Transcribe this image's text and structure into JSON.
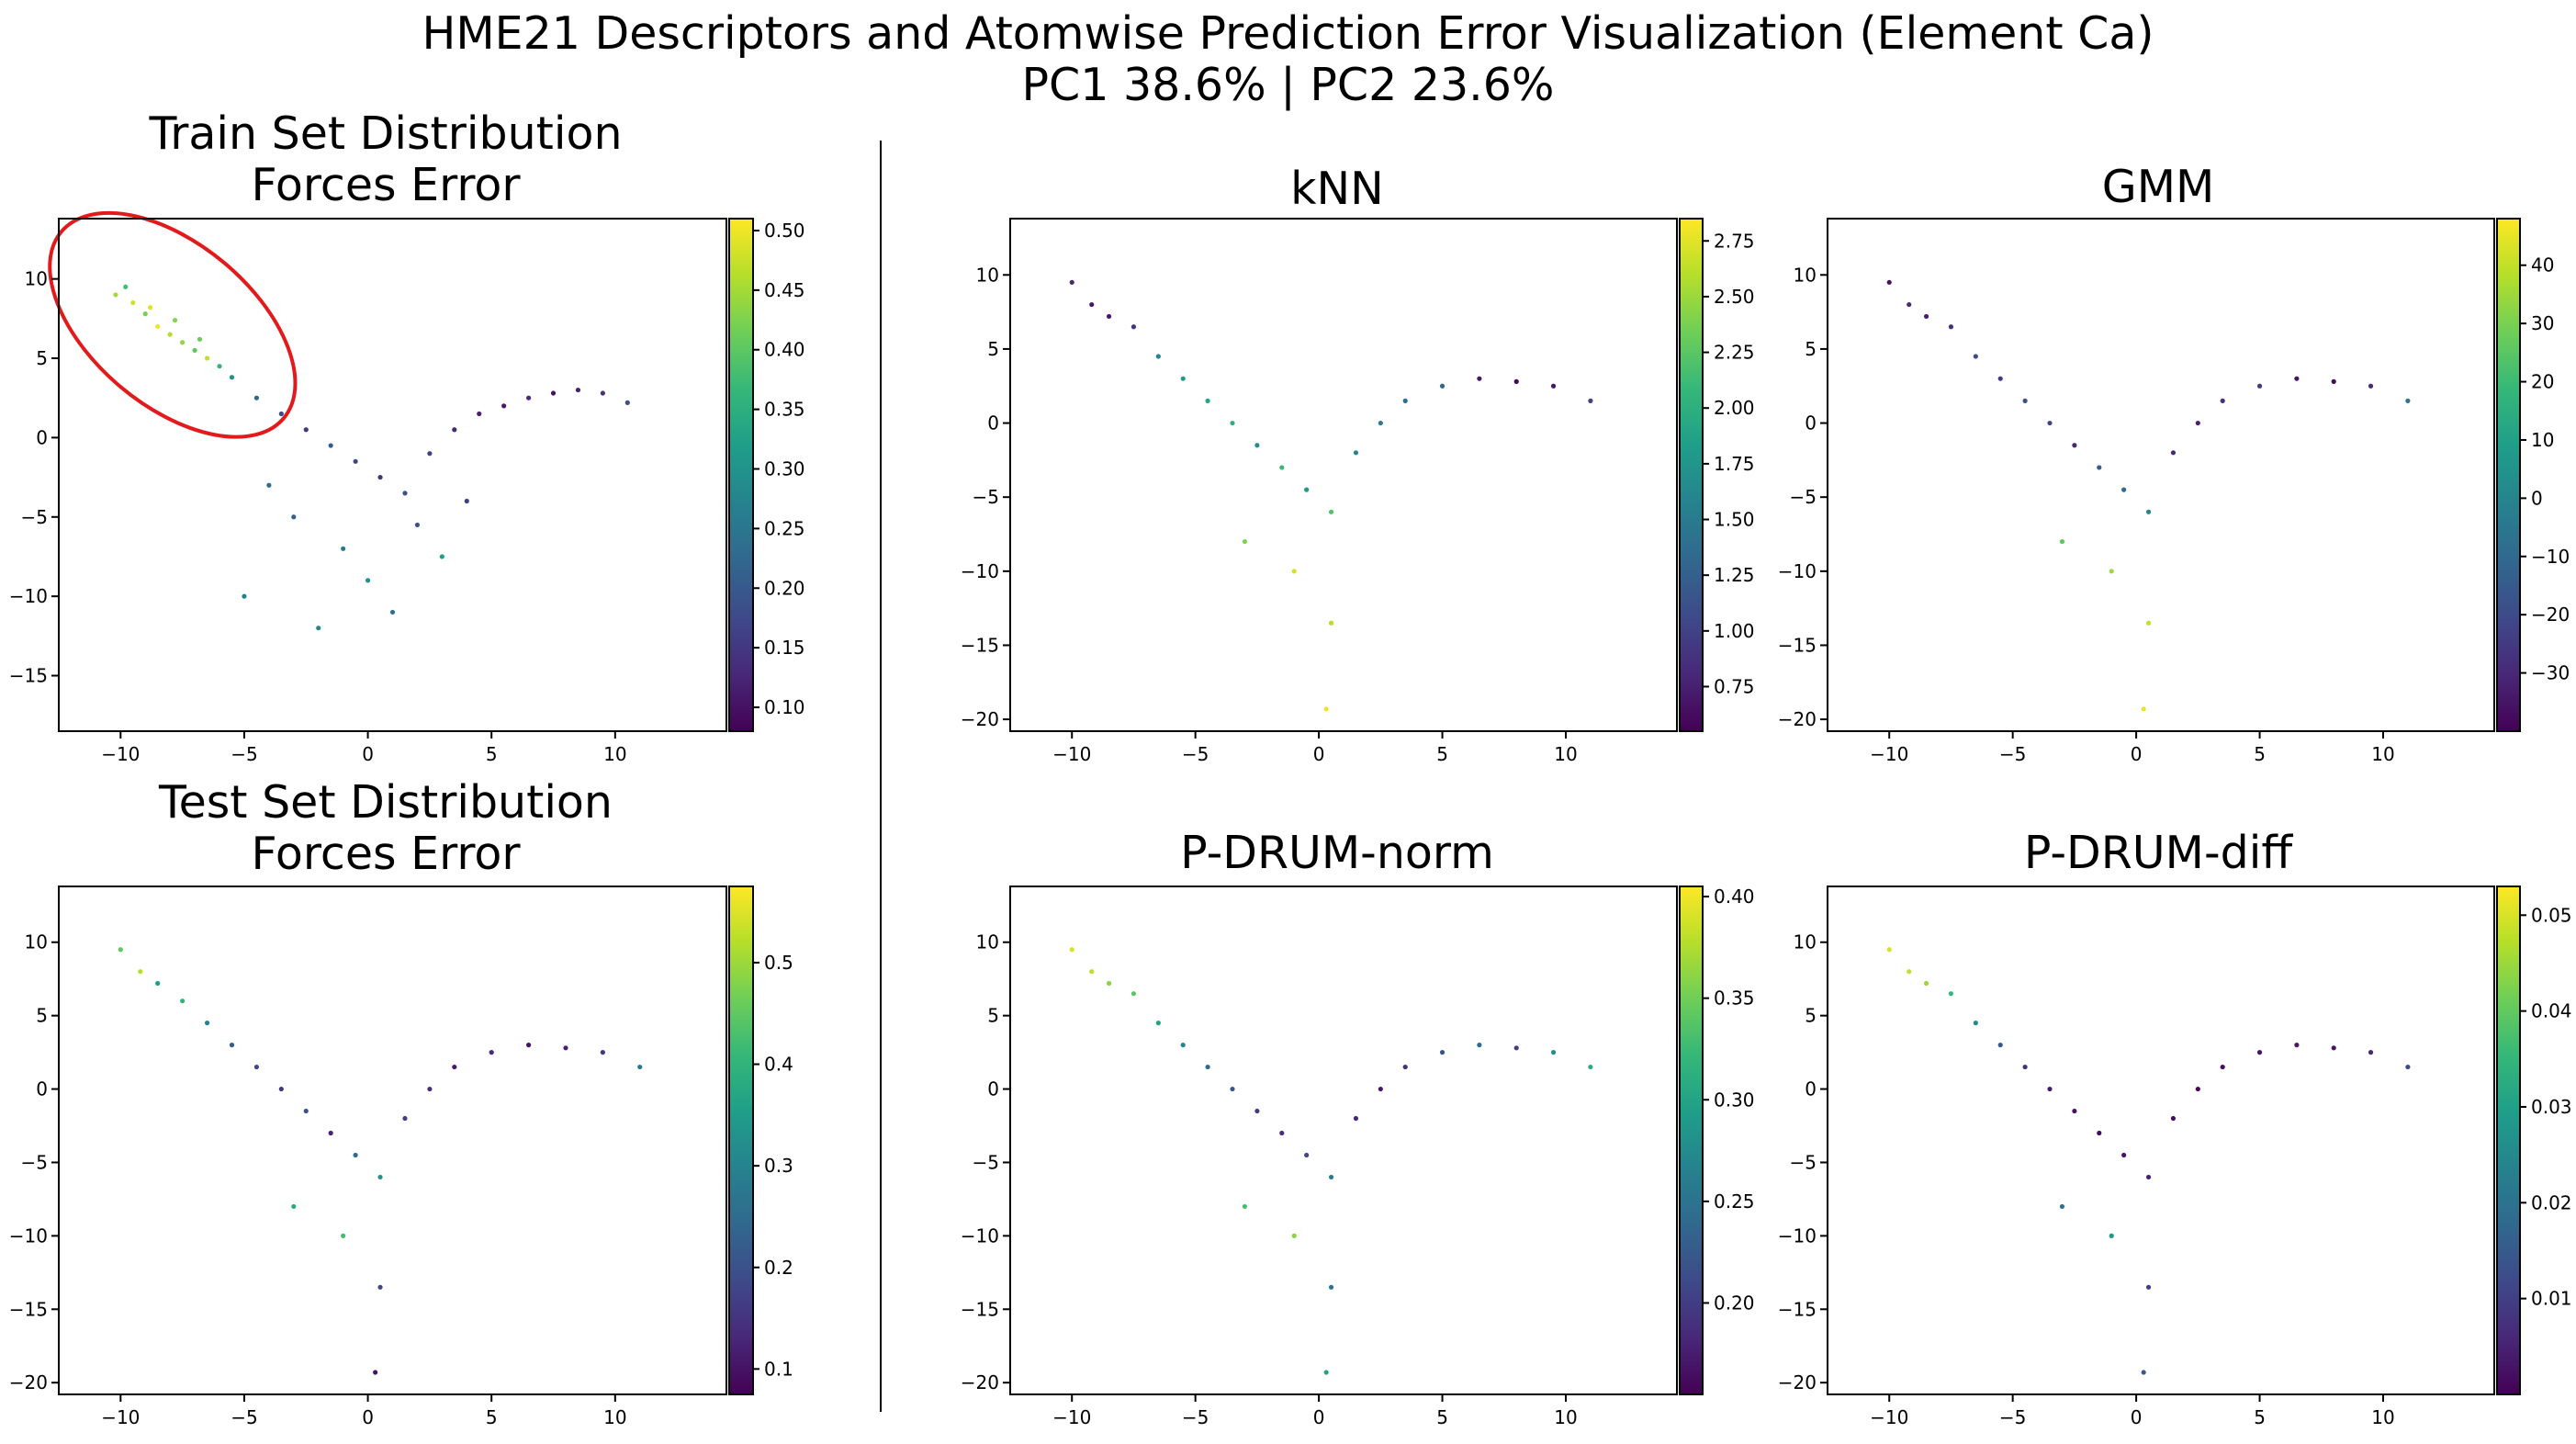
{
  "figure": {
    "title_line1": "HME21 Descriptors and Atomwise Prediction Error Visualization (Element Ca)",
    "title_line2": "PC1 38.6% | PC2 23.6%"
  },
  "chart_data": [
    {
      "type": "scatter",
      "title": "Train Set Distribution\nForces Error",
      "xlim": [
        -12.5,
        14.5
      ],
      "ylim": [
        -18.5,
        13.8
      ],
      "xticks": [
        -10,
        -5,
        0,
        5,
        10
      ],
      "yticks": [
        -15,
        -10,
        -5,
        0,
        5,
        10
      ],
      "colorbar": {
        "colormap": "viridis",
        "min": 0.08,
        "max": 0.51,
        "ticks": [
          0.1,
          0.15,
          0.2,
          0.25,
          0.3,
          0.35,
          0.4,
          0.45,
          0.5
        ],
        "tick_labels": [
          "0.10",
          "0.15",
          "0.20",
          "0.25",
          "0.30",
          "0.35",
          "0.40",
          "0.45",
          "0.50"
        ]
      },
      "annotation": {
        "shape": "ellipse",
        "color": "#e31a1c",
        "center": [
          -7.9,
          7.1
        ],
        "description": "high-error region circled"
      },
      "points": [
        [
          -10.2,
          9.0,
          0.45
        ],
        [
          -9.5,
          8.5,
          0.48
        ],
        [
          -9.0,
          7.8,
          0.42
        ],
        [
          -8.5,
          7.0,
          0.5
        ],
        [
          -8.0,
          6.5,
          0.46
        ],
        [
          -7.5,
          6.0,
          0.44
        ],
        [
          -7.0,
          5.5,
          0.4
        ],
        [
          -6.5,
          5.0,
          0.47
        ],
        [
          -9.8,
          9.5,
          0.38
        ],
        [
          -8.8,
          8.2,
          0.49
        ],
        [
          -7.8,
          7.4,
          0.43
        ],
        [
          -6.8,
          6.2,
          0.41
        ],
        [
          -6.0,
          4.5,
          0.36
        ],
        [
          -5.5,
          3.8,
          0.3
        ],
        [
          -4.5,
          2.5,
          0.22
        ],
        [
          -3.5,
          1.5,
          0.18
        ],
        [
          -2.5,
          0.5,
          0.15
        ],
        [
          -1.5,
          -0.5,
          0.2
        ],
        [
          -0.5,
          -1.5,
          0.17
        ],
        [
          0.5,
          -2.5,
          0.14
        ],
        [
          1.5,
          -3.5,
          0.19
        ],
        [
          2.5,
          -1.0,
          0.16
        ],
        [
          3.5,
          0.5,
          0.13
        ],
        [
          4.5,
          1.5,
          0.12
        ],
        [
          5.5,
          2.0,
          0.11
        ],
        [
          6.5,
          2.5,
          0.13
        ],
        [
          7.5,
          2.8,
          0.1
        ],
        [
          8.5,
          3.0,
          0.12
        ],
        [
          9.5,
          2.8,
          0.14
        ],
        [
          10.5,
          2.2,
          0.18
        ],
        [
          -3.0,
          -5.0,
          0.21
        ],
        [
          -1.0,
          -7.0,
          0.26
        ],
        [
          0.0,
          -9.0,
          0.3
        ],
        [
          1.0,
          -11.0,
          0.24
        ],
        [
          -2.0,
          -12.0,
          0.28
        ],
        [
          2.0,
          -5.5,
          0.19
        ],
        [
          -4.0,
          -3.0,
          0.23
        ],
        [
          3.0,
          -7.5,
          0.32
        ],
        [
          -5.0,
          -10.0,
          0.27
        ],
        [
          4.0,
          -4.0,
          0.16
        ]
      ]
    },
    {
      "type": "scatter",
      "title": "Test Set Distribution\nForces Error",
      "xlim": [
        -12.5,
        14.5
      ],
      "ylim": [
        -20.8,
        13.8
      ],
      "xticks": [
        -10,
        -5,
        0,
        5,
        10
      ],
      "yticks": [
        -20,
        -15,
        -10,
        -5,
        0,
        5,
        10
      ],
      "colorbar": {
        "colormap": "viridis",
        "min": 0.075,
        "max": 0.575,
        "ticks": [
          0.1,
          0.2,
          0.3,
          0.4,
          0.5
        ],
        "tick_labels": [
          "0.1",
          "0.2",
          "0.3",
          "0.4",
          "0.5"
        ]
      },
      "points": [
        [
          -10.0,
          9.5,
          0.45
        ],
        [
          -9.2,
          8.0,
          0.52
        ],
        [
          -8.5,
          7.2,
          0.35
        ],
        [
          -7.5,
          6.0,
          0.4
        ],
        [
          -6.5,
          4.5,
          0.3
        ],
        [
          -5.5,
          3.0,
          0.22
        ],
        [
          -4.5,
          1.5,
          0.18
        ],
        [
          -3.5,
          0.0,
          0.15
        ],
        [
          -2.5,
          -1.5,
          0.2
        ],
        [
          -1.5,
          -3.0,
          0.12
        ],
        [
          -0.5,
          -4.5,
          0.25
        ],
        [
          0.5,
          -6.0,
          0.33
        ],
        [
          1.5,
          -2.0,
          0.16
        ],
        [
          2.5,
          0.0,
          0.14
        ],
        [
          3.5,
          1.5,
          0.11
        ],
        [
          5.0,
          2.5,
          0.13
        ],
        [
          6.5,
          3.0,
          0.1
        ],
        [
          8.0,
          2.8,
          0.12
        ],
        [
          9.5,
          2.5,
          0.15
        ],
        [
          11.0,
          1.5,
          0.28
        ],
        [
          -3.0,
          -8.0,
          0.38
        ],
        [
          -1.0,
          -10.0,
          0.42
        ],
        [
          0.3,
          -19.3,
          0.1
        ],
        [
          0.5,
          -13.5,
          0.18
        ]
      ]
    },
    {
      "type": "scatter",
      "title": "kNN",
      "xlim": [
        -12.5,
        14.5
      ],
      "ylim": [
        -20.8,
        13.8
      ],
      "xticks": [
        -10,
        -5,
        0,
        5,
        10
      ],
      "yticks": [
        -20,
        -15,
        -10,
        -5,
        0,
        5,
        10
      ],
      "colorbar": {
        "colormap": "viridis",
        "min": 0.55,
        "max": 2.85,
        "ticks": [
          0.75,
          1.0,
          1.25,
          1.5,
          1.75,
          2.0,
          2.25,
          2.5,
          2.75
        ],
        "tick_labels": [
          "0.75",
          "1.00",
          "1.25",
          "1.50",
          "1.75",
          "2.00",
          "2.25",
          "2.50",
          "2.75"
        ]
      },
      "points": [
        [
          -10.0,
          9.5,
          0.8
        ],
        [
          -9.2,
          8.0,
          0.7
        ],
        [
          -8.5,
          7.2,
          0.7
        ],
        [
          -7.5,
          6.5,
          0.9
        ],
        [
          -6.5,
          4.5,
          1.6
        ],
        [
          -5.5,
          3.0,
          1.8
        ],
        [
          -4.5,
          1.5,
          1.9
        ],
        [
          -3.5,
          0.0,
          2.0
        ],
        [
          -2.5,
          -1.5,
          1.7
        ],
        [
          -1.5,
          -3.0,
          2.1
        ],
        [
          -0.5,
          -4.5,
          1.8
        ],
        [
          0.5,
          -6.0,
          2.2
        ],
        [
          1.5,
          -2.0,
          1.6
        ],
        [
          2.5,
          0.0,
          1.5
        ],
        [
          3.5,
          1.5,
          1.4
        ],
        [
          5.0,
          2.5,
          1.3
        ],
        [
          6.5,
          3.0,
          0.7
        ],
        [
          8.0,
          2.8,
          0.6
        ],
        [
          9.5,
          2.5,
          0.7
        ],
        [
          11.0,
          1.5,
          1.0
        ],
        [
          -3.0,
          -8.0,
          2.4
        ],
        [
          -1.0,
          -10.0,
          2.7
        ],
        [
          0.3,
          -19.3,
          2.8
        ],
        [
          0.5,
          -13.5,
          2.6
        ]
      ]
    },
    {
      "type": "scatter",
      "title": "GMM",
      "xlim": [
        -12.5,
        14.5
      ],
      "ylim": [
        -20.8,
        13.8
      ],
      "xticks": [
        -10,
        -5,
        0,
        5,
        10
      ],
      "yticks": [
        -20,
        -15,
        -10,
        -5,
        0,
        5,
        10
      ],
      "colorbar": {
        "colormap": "viridis",
        "min": -40,
        "max": 48,
        "ticks": [
          -30,
          -20,
          -10,
          0,
          10,
          20,
          30,
          40
        ],
        "tick_labels": [
          "−30",
          "−20",
          "−10",
          "0",
          "10",
          "20",
          "30",
          "40"
        ]
      },
      "points": [
        [
          -10.0,
          9.5,
          -35
        ],
        [
          -9.2,
          8.0,
          -30
        ],
        [
          -8.5,
          7.2,
          -33
        ],
        [
          -7.5,
          6.5,
          -28
        ],
        [
          -6.5,
          4.5,
          -20
        ],
        [
          -5.5,
          3.0,
          -25
        ],
        [
          -4.5,
          1.5,
          -18
        ],
        [
          -3.5,
          0.0,
          -22
        ],
        [
          -2.5,
          -1.5,
          -30
        ],
        [
          -1.5,
          -3.0,
          -15
        ],
        [
          -0.5,
          -4.5,
          -10
        ],
        [
          0.5,
          -6.0,
          0
        ],
        [
          1.5,
          -2.0,
          -30
        ],
        [
          2.5,
          0.0,
          -32
        ],
        [
          3.5,
          1.5,
          -28
        ],
        [
          5.0,
          2.5,
          -25
        ],
        [
          6.5,
          3.0,
          -35
        ],
        [
          8.0,
          2.8,
          -38
        ],
        [
          9.5,
          2.5,
          -30
        ],
        [
          11.0,
          1.5,
          -5
        ],
        [
          -3.0,
          -8.0,
          25
        ],
        [
          -1.0,
          -10.0,
          35
        ],
        [
          0.3,
          -19.3,
          45
        ],
        [
          0.5,
          -13.5,
          40
        ]
      ]
    },
    {
      "type": "scatter",
      "title": "P-DRUM-norm",
      "xlim": [
        -12.5,
        14.5
      ],
      "ylim": [
        -20.8,
        13.8
      ],
      "xticks": [
        -10,
        -5,
        0,
        5,
        10
      ],
      "yticks": [
        -20,
        -15,
        -10,
        -5,
        0,
        5,
        10
      ],
      "colorbar": {
        "colormap": "viridis",
        "min": 0.155,
        "max": 0.405,
        "ticks": [
          0.2,
          0.25,
          0.3,
          0.35,
          0.4
        ],
        "tick_labels": [
          "0.20",
          "0.25",
          "0.30",
          "0.35",
          "0.40"
        ]
      },
      "points": [
        [
          -10.0,
          9.5,
          0.39
        ],
        [
          -9.2,
          8.0,
          0.38
        ],
        [
          -8.5,
          7.2,
          0.36
        ],
        [
          -7.5,
          6.5,
          0.34
        ],
        [
          -6.5,
          4.5,
          0.3
        ],
        [
          -5.5,
          3.0,
          0.27
        ],
        [
          -4.5,
          1.5,
          0.24
        ],
        [
          -3.5,
          0.0,
          0.22
        ],
        [
          -2.5,
          -1.5,
          0.2
        ],
        [
          -1.5,
          -3.0,
          0.19
        ],
        [
          -0.5,
          -4.5,
          0.21
        ],
        [
          0.5,
          -6.0,
          0.26
        ],
        [
          1.5,
          -2.0,
          0.18
        ],
        [
          2.5,
          0.0,
          0.17
        ],
        [
          3.5,
          1.5,
          0.19
        ],
        [
          5.0,
          2.5,
          0.22
        ],
        [
          6.5,
          3.0,
          0.24
        ],
        [
          8.0,
          2.8,
          0.2
        ],
        [
          9.5,
          2.5,
          0.28
        ],
        [
          11.0,
          1.5,
          0.31
        ],
        [
          -3.0,
          -8.0,
          0.33
        ],
        [
          -1.0,
          -10.0,
          0.36
        ],
        [
          0.3,
          -19.3,
          0.3
        ],
        [
          0.5,
          -13.5,
          0.25
        ]
      ]
    },
    {
      "type": "scatter",
      "title": "P-DRUM-diff",
      "xlim": [
        -12.5,
        14.5
      ],
      "ylim": [
        -20.8,
        13.8
      ],
      "xticks": [
        -10,
        -5,
        0,
        5,
        10
      ],
      "yticks": [
        -20,
        -15,
        -10,
        -5,
        0,
        5,
        10
      ],
      "colorbar": {
        "colormap": "viridis",
        "min": 0.0,
        "max": 0.053,
        "ticks": [
          0.01,
          0.02,
          0.03,
          0.04,
          0.05
        ],
        "tick_labels": [
          "0.01",
          "0.02",
          "0.03",
          "0.04",
          "0.05"
        ]
      },
      "points": [
        [
          -10.0,
          9.5,
          0.05
        ],
        [
          -9.2,
          8.0,
          0.048
        ],
        [
          -8.5,
          7.2,
          0.045
        ],
        [
          -7.5,
          6.5,
          0.035
        ],
        [
          -6.5,
          4.5,
          0.025
        ],
        [
          -5.5,
          3.0,
          0.015
        ],
        [
          -4.5,
          1.5,
          0.008
        ],
        [
          -3.5,
          0.0,
          0.004
        ],
        [
          -2.5,
          -1.5,
          0.003
        ],
        [
          -1.5,
          -3.0,
          0.002
        ],
        [
          -0.5,
          -4.5,
          0.003
        ],
        [
          0.5,
          -6.0,
          0.005
        ],
        [
          1.5,
          -2.0,
          0.002
        ],
        [
          2.5,
          0.0,
          0.001
        ],
        [
          3.5,
          1.5,
          0.002
        ],
        [
          5.0,
          2.5,
          0.003
        ],
        [
          6.5,
          3.0,
          0.004
        ],
        [
          8.0,
          2.8,
          0.003
        ],
        [
          9.5,
          2.5,
          0.006
        ],
        [
          11.0,
          1.5,
          0.012
        ],
        [
          -3.0,
          -8.0,
          0.02
        ],
        [
          -1.0,
          -10.0,
          0.028
        ],
        [
          0.3,
          -19.3,
          0.015
        ],
        [
          0.5,
          -13.5,
          0.01
        ]
      ]
    }
  ]
}
